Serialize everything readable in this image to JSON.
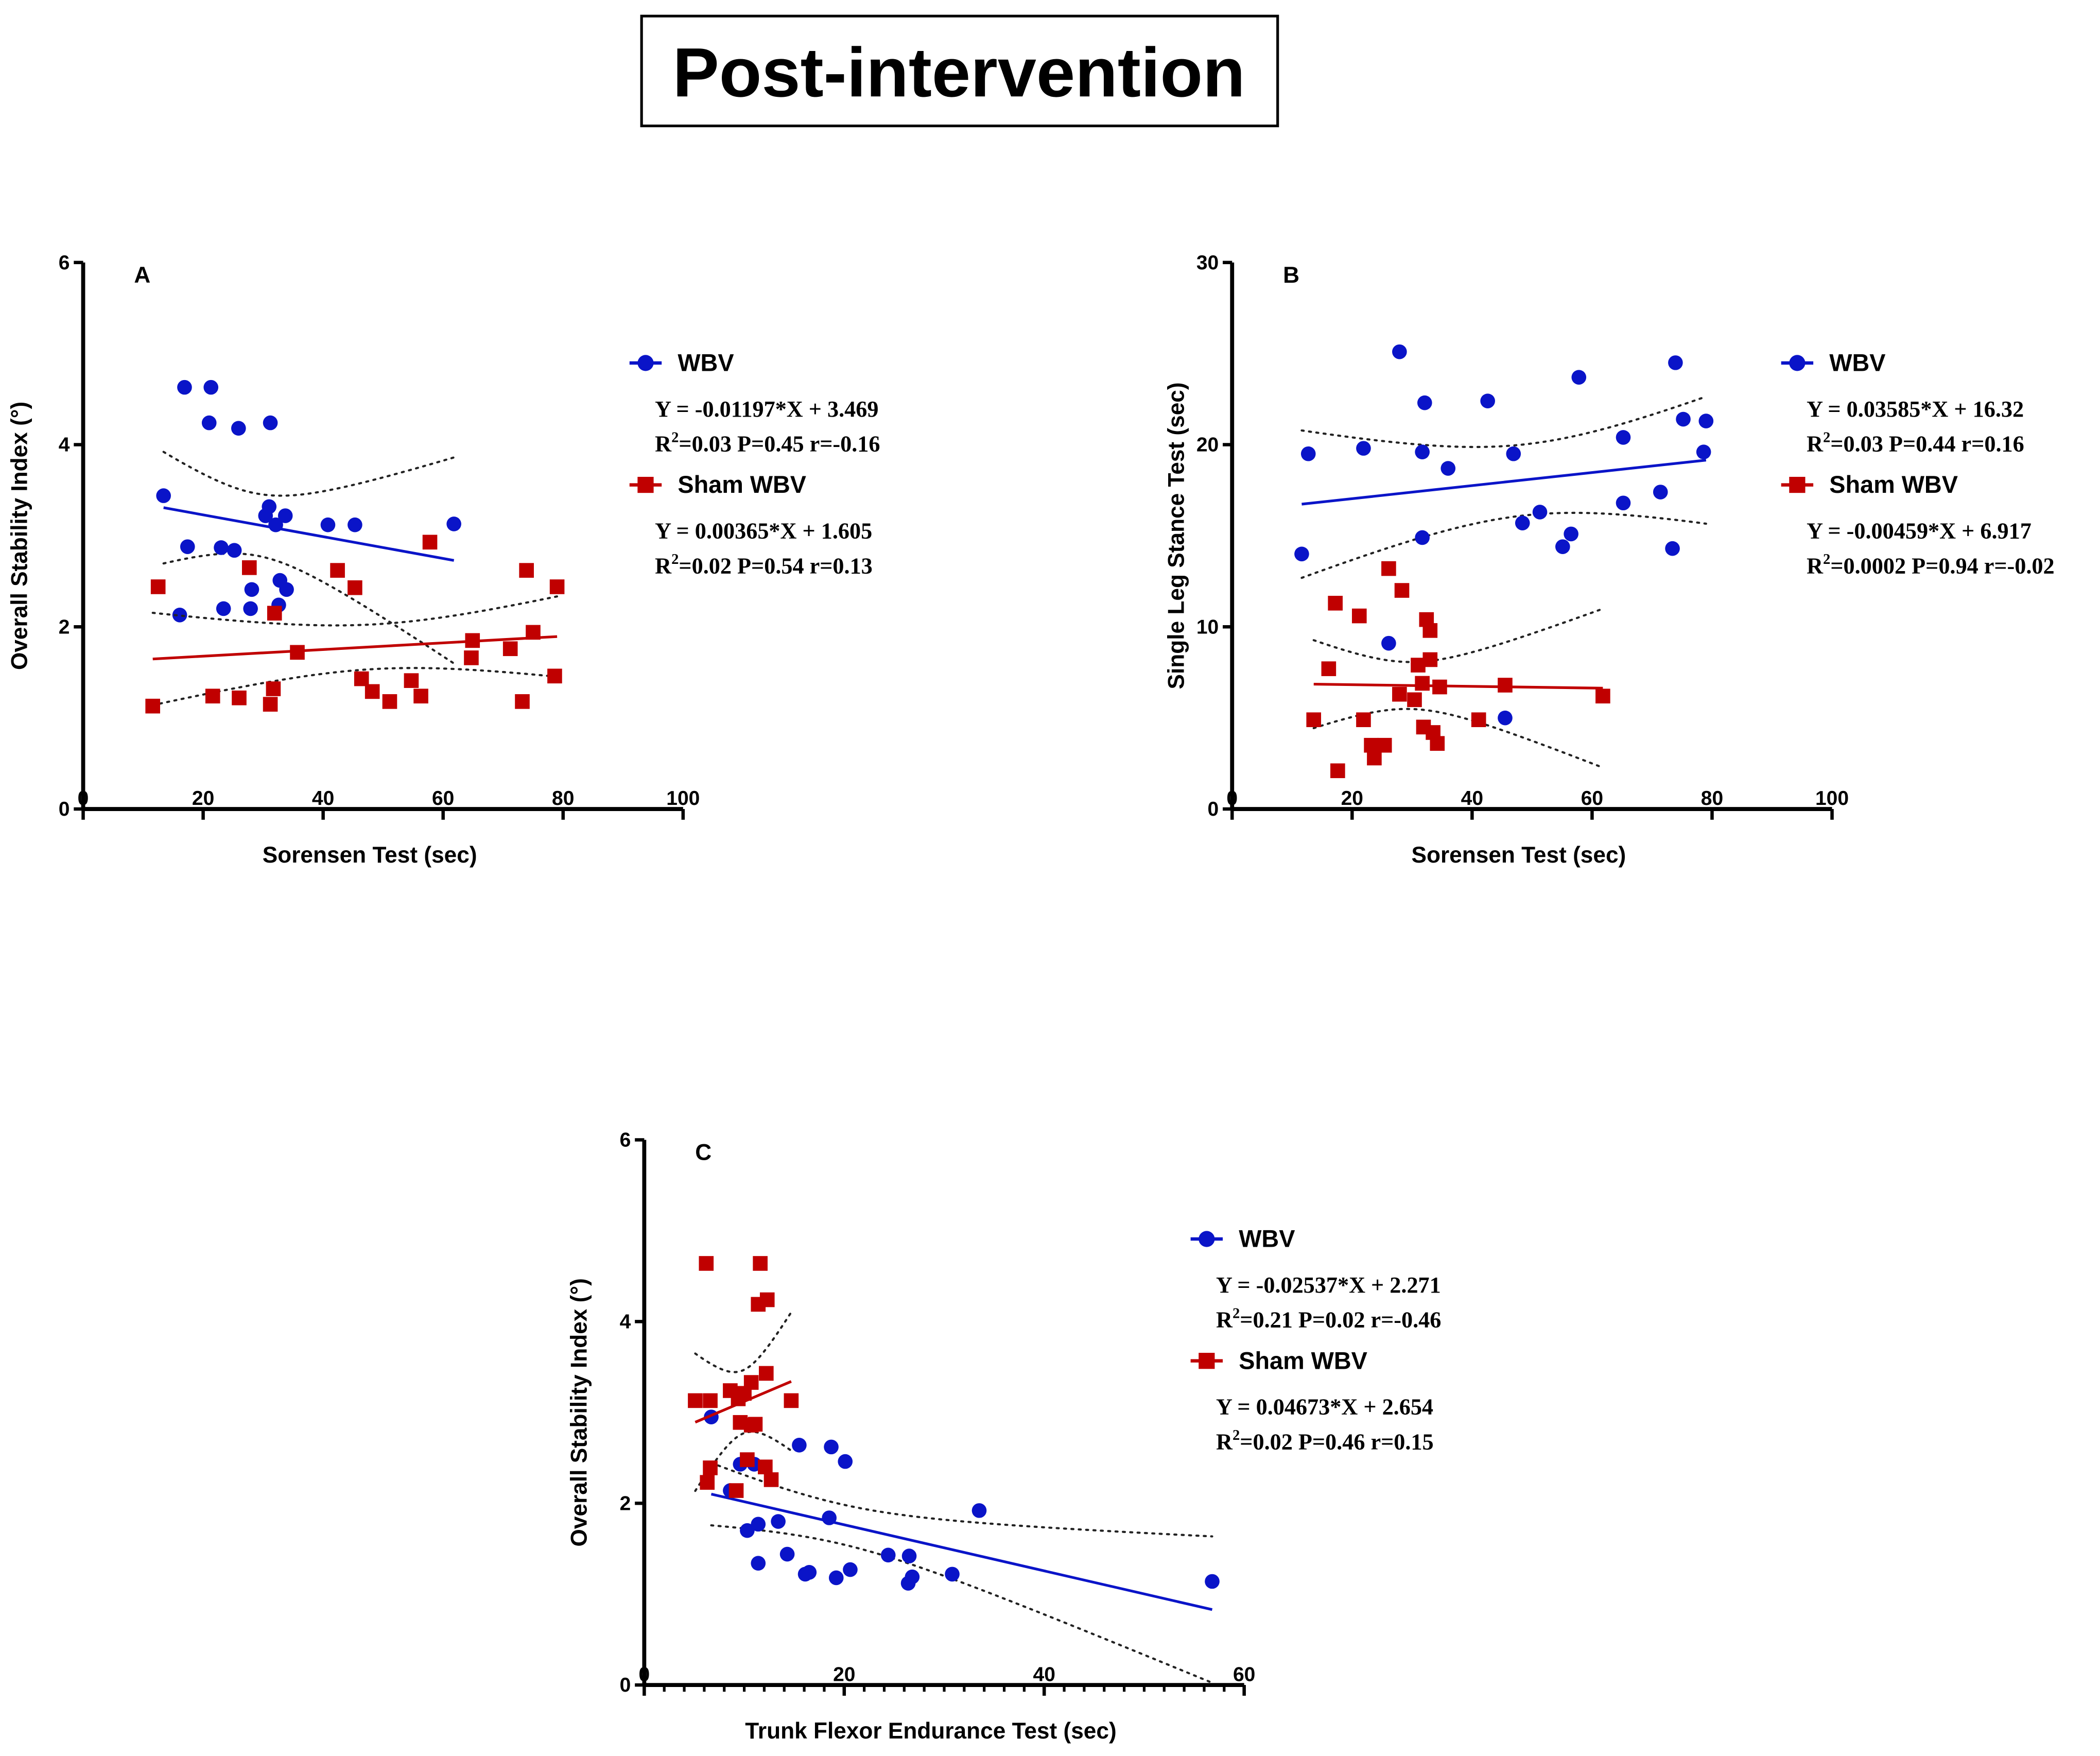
{
  "title": "Post-intervention",
  "colors": {
    "wbv": "#0a14c8",
    "sham": "#c00000",
    "axis": "#000000"
  },
  "chart_data": [
    {
      "type": "scatter",
      "panel": "A",
      "xlabel": "Sorensen Test (sec)",
      "ylabel": "Overall Stability Index (°)",
      "xlim": [
        0,
        100
      ],
      "ylim": [
        0,
        6
      ],
      "xticks": [
        0,
        20,
        40,
        60,
        80,
        100
      ],
      "yticks": [
        0,
        2,
        4,
        6
      ],
      "xminor": null,
      "legend_position": "right",
      "series": [
        {
          "name": "WBV",
          "marker": "circle",
          "color": "#0a14c8",
          "equation": "Y = -0.01197*X + 3.469",
          "stats": "=0.03 P=0.45 r=-0.16",
          "slope": -0.01197,
          "intercept": 3.469,
          "points": [
            [
              13.4,
              3.44
            ],
            [
              16.9,
              4.63
            ],
            [
              21.3,
              4.63
            ],
            [
              21,
              4.24
            ],
            [
              25.9,
              4.18
            ],
            [
              31.2,
              4.24
            ],
            [
              17.4,
              2.88
            ],
            [
              23,
              2.87
            ],
            [
              25.2,
              2.84
            ],
            [
              16.1,
              2.13
            ],
            [
              23.4,
              2.2
            ],
            [
              27.9,
              2.2
            ],
            [
              28.1,
              2.41
            ],
            [
              30.4,
              3.22
            ],
            [
              31,
              3.32
            ],
            [
              32.1,
              3.12
            ],
            [
              33.7,
              3.22
            ],
            [
              32.8,
              2.51
            ],
            [
              33.9,
              2.41
            ],
            [
              32.6,
              2.24
            ],
            [
              40.8,
              3.12
            ],
            [
              45.3,
              3.12
            ],
            [
              61.8,
              3.13
            ]
          ]
        },
        {
          "name": "Sham WBV",
          "marker": "square",
          "color": "#c00000",
          "equation": "Y = 0.00365*X + 1.605",
          "stats": "=0.02 P=0.54 r=0.13",
          "slope": 0.00365,
          "intercept": 1.605,
          "points": [
            [
              11.6,
              1.13
            ],
            [
              12.5,
              2.44
            ],
            [
              21.6,
              1.24
            ],
            [
              26,
              1.22
            ],
            [
              27.7,
              2.65
            ],
            [
              31.7,
              1.32
            ],
            [
              31.2,
              1.15
            ],
            [
              31.9,
              2.15
            ],
            [
              35.7,
              1.72
            ],
            [
              42.4,
              2.62
            ],
            [
              45.3,
              2.43
            ],
            [
              46.4,
              1.43
            ],
            [
              48.2,
              1.29
            ],
            [
              51.1,
              1.18
            ],
            [
              54.7,
              1.41
            ],
            [
              56.3,
              1.24
            ],
            [
              57.8,
              2.93
            ],
            [
              64.9,
              1.85
            ],
            [
              64.7,
              1.66
            ],
            [
              71.2,
              1.76
            ],
            [
              73.2,
              1.18
            ],
            [
              73.9,
              2.62
            ],
            [
              75,
              1.94
            ],
            [
              78.6,
              1.46
            ],
            [
              79,
              2.44
            ]
          ]
        }
      ]
    },
    {
      "type": "scatter",
      "panel": "B",
      "xlabel": "Sorensen Test (sec)",
      "ylabel": "Single Leg Stance Test (sec)",
      "xlim": [
        0,
        100
      ],
      "ylim": [
        0,
        30
      ],
      "xticks": [
        0,
        20,
        40,
        60,
        80,
        100
      ],
      "yticks": [
        0,
        10,
        20,
        30
      ],
      "xminor": null,
      "legend_position": "right",
      "series": [
        {
          "name": "WBV",
          "marker": "circle",
          "color": "#0a14c8",
          "equation": "Y = 0.03585*X + 16.32",
          "stats": "=0.03 P=0.44 r=0.16",
          "slope": 0.03585,
          "intercept": 16.32,
          "points": [
            [
              27.9,
              25.1
            ],
            [
              11.6,
              14.0
            ],
            [
              12.7,
              19.5
            ],
            [
              21.9,
              19.8
            ],
            [
              32.1,
              22.3
            ],
            [
              31.7,
              19.6
            ],
            [
              36,
              18.7
            ],
            [
              42.6,
              22.4
            ],
            [
              46.9,
              19.5
            ],
            [
              31.7,
              14.9
            ],
            [
              26.1,
              9.1
            ],
            [
              45.5,
              5.0
            ],
            [
              48.4,
              15.7
            ],
            [
              51.3,
              16.3
            ],
            [
              55.1,
              14.4
            ],
            [
              56.5,
              15.1
            ],
            [
              57.8,
              23.7
            ],
            [
              65.2,
              20.4
            ],
            [
              65.2,
              16.8
            ],
            [
              71.4,
              17.4
            ],
            [
              73.4,
              14.3
            ],
            [
              73.9,
              24.5
            ],
            [
              75.2,
              21.4
            ],
            [
              78.6,
              19.6
            ],
            [
              79,
              21.3
            ]
          ]
        },
        {
          "name": "Sham WBV",
          "marker": "square",
          "color": "#c00000",
          "equation": "Y = -0.00459*X + 6.917",
          "stats": "=0.0002 P=0.94 r=-0.02",
          "slope": -0.00459,
          "intercept": 6.917,
          "points": [
            [
              13.6,
              4.9
            ],
            [
              16.1,
              7.7
            ],
            [
              17.2,
              11.3
            ],
            [
              17.6,
              2.1
            ],
            [
              21.2,
              10.6
            ],
            [
              21.9,
              4.9
            ],
            [
              23.2,
              3.5
            ],
            [
              23.7,
              2.8
            ],
            [
              25.4,
              3.5
            ],
            [
              26.1,
              13.2
            ],
            [
              27.9,
              6.3
            ],
            [
              28.3,
              12.0
            ],
            [
              30.4,
              6.0
            ],
            [
              31,
              7.9
            ],
            [
              31.7,
              6.9
            ],
            [
              31.9,
              4.5
            ],
            [
              32.4,
              10.4
            ],
            [
              33,
              9.8
            ],
            [
              33,
              8.2
            ],
            [
              33.5,
              4.2
            ],
            [
              34.2,
              3.6
            ],
            [
              34.6,
              6.7
            ],
            [
              41.1,
              4.9
            ],
            [
              45.5,
              6.8
            ],
            [
              61.8,
              6.2
            ]
          ]
        }
      ]
    },
    {
      "type": "scatter",
      "panel": "C",
      "xlabel": "Trunk Flexor Endurance Test (sec)",
      "ylabel": "Overall Stability Index  (°)",
      "xlim": [
        0,
        60
      ],
      "ylim": [
        0,
        6
      ],
      "xticks": [
        0,
        20,
        40,
        60
      ],
      "yticks": [
        0,
        2,
        4,
        6
      ],
      "xminor": 2,
      "legend_position": "right",
      "series": [
        {
          "name": "WBV",
          "marker": "circle",
          "color": "#0a14c8",
          "equation": "Y = -0.02537*X + 2.271",
          "stats": "=0.21 P=0.02 r=-0.46",
          "slope": -0.02537,
          "intercept": 2.271,
          "points": [
            [
              6.7,
              2.95
            ],
            [
              8.6,
              2.14
            ],
            [
              9.6,
              2.43
            ],
            [
              10.3,
              1.7
            ],
            [
              11,
              2.43
            ],
            [
              11.4,
              1.77
            ],
            [
              11.4,
              1.34
            ],
            [
              13.4,
              1.8
            ],
            [
              14.3,
              1.44
            ],
            [
              15.5,
              2.64
            ],
            [
              16.1,
              1.22
            ],
            [
              16.5,
              1.24
            ],
            [
              18.5,
              1.84
            ],
            [
              18.7,
              2.62
            ],
            [
              19.2,
              1.18
            ],
            [
              20.1,
              2.46
            ],
            [
              20.6,
              1.27
            ],
            [
              24.4,
              1.43
            ],
            [
              26.5,
              1.42
            ],
            [
              26.4,
              1.12
            ],
            [
              26.8,
              1.19
            ],
            [
              30.8,
              1.22
            ],
            [
              33.5,
              1.92
            ],
            [
              56.8,
              1.14
            ]
          ]
        },
        {
          "name": "Sham WBV",
          "marker": "square",
          "color": "#c00000",
          "equation": "Y = 0.04673*X + 2.654",
          "stats": "=0.02 P=0.46 r=0.15",
          "slope": 0.04673,
          "intercept": 2.654,
          "points": [
            [
              5.1,
              3.13
            ],
            [
              6.2,
              4.64
            ],
            [
              6.6,
              3.13
            ],
            [
              6.3,
              2.23
            ],
            [
              6.6,
              2.39
            ],
            [
              8.6,
              3.24
            ],
            [
              9.2,
              2.14
            ],
            [
              9.4,
              3.15
            ],
            [
              9.6,
              2.89
            ],
            [
              10,
              3.21
            ],
            [
              10.3,
              2.48
            ],
            [
              10.7,
              2.86
            ],
            [
              10.7,
              3.33
            ],
            [
              11.1,
              2.87
            ],
            [
              11.4,
              4.19
            ],
            [
              11.6,
              4.64
            ],
            [
              12.1,
              2.4
            ],
            [
              12.2,
              3.43
            ],
            [
              12.3,
              4.24
            ],
            [
              12.7,
              2.26
            ],
            [
              14.7,
              3.13
            ]
          ]
        }
      ]
    }
  ]
}
